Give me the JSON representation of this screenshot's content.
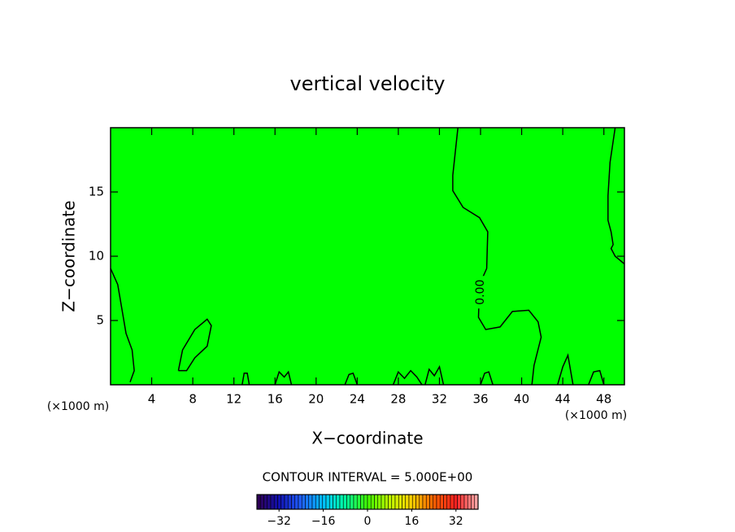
{
  "chart_data": {
    "type": "contour",
    "title": "vertical velocity",
    "x_label": "X−coordinate",
    "y_label": "Z−coordinate",
    "x_unit": "(×1000 m)",
    "y_unit": "(×1000 m)",
    "xlim": [
      0,
      50
    ],
    "ylim": [
      0,
      20
    ],
    "xticks": [
      4,
      8,
      12,
      16,
      20,
      24,
      28,
      32,
      36,
      40,
      44,
      48
    ],
    "yticks": [
      5,
      10,
      15
    ],
    "fill_color": "#00ff00",
    "line_color": "#000000",
    "contours": [
      {
        "label": "0.00",
        "label_x": 36.0,
        "label_z": 7.2,
        "x": [
          33.8,
          33.3,
          33.3,
          34.3,
          35.9,
          36.7,
          36.6,
          35.9,
          35.8,
          36.5,
          37.9,
          39.1,
          40.7,
          41.6,
          41.9,
          41.2,
          41.0
        ],
        "z": [
          20,
          16.3,
          15.1,
          13.8,
          13.0,
          11.9,
          9.05,
          7.8,
          5.25,
          4.3,
          4.5,
          5.7,
          5.8,
          4.9,
          3.7,
          1.5,
          0
        ]
      },
      {
        "x": [
          49.1,
          48.6,
          48.4,
          48.4,
          48.7,
          48.9,
          48.7,
          49.1,
          50
        ],
        "z": [
          20,
          17.3,
          14.7,
          12.8,
          11.9,
          10.9,
          10.6,
          10.0,
          9.4
        ]
      },
      {
        "x": [
          0,
          0.7,
          1.1,
          1.5,
          2.1,
          2.3,
          1.9
        ],
        "z": [
          9.05,
          7.8,
          5.9,
          4.0,
          2.7,
          1.1,
          0.2
        ]
      },
      {
        "x": [
          6.6,
          7.0,
          8.2,
          9.4,
          9.8,
          9.4,
          8.2,
          7.4,
          6.6
        ],
        "z": [
          1.1,
          2.7,
          4.3,
          5.1,
          4.6,
          3.0,
          2.1,
          1.1,
          1.1
        ]
      },
      {
        "x": [
          12.8,
          13.0,
          13.3,
          13.5
        ],
        "z": [
          0,
          0.9,
          0.9,
          0
        ]
      },
      {
        "x": [
          16.0,
          16.4,
          16.9,
          17.3,
          17.6
        ],
        "z": [
          0,
          1.0,
          0.6,
          1.0,
          0
        ]
      },
      {
        "x": [
          22.8,
          23.2,
          23.6,
          24.0
        ],
        "z": [
          0,
          0.8,
          0.9,
          0
        ]
      },
      {
        "x": [
          27.5,
          28.0,
          28.6,
          29.2,
          29.8,
          30.3
        ],
        "z": [
          0,
          1.0,
          0.5,
          1.1,
          0.6,
          0
        ]
      },
      {
        "x": [
          30.6,
          31.0,
          31.5,
          32.0,
          32.4
        ],
        "z": [
          0,
          1.2,
          0.7,
          1.4,
          0
        ]
      },
      {
        "x": [
          36.0,
          36.4,
          36.8,
          37.2
        ],
        "z": [
          0,
          0.9,
          1.0,
          0
        ]
      },
      {
        "x": [
          43.5,
          44.0,
          44.5,
          45.0
        ],
        "z": [
          0,
          1.4,
          2.3,
          0
        ]
      },
      {
        "x": [
          46.5,
          47.0,
          47.6,
          48.0
        ],
        "z": [
          0,
          1.0,
          1.1,
          0
        ]
      }
    ],
    "contour_info": "CONTOUR INTERVAL = 5.000E+00",
    "colorbar": {
      "lim": [
        -40,
        40
      ],
      "ticks": [
        {
          "value": -32,
          "label": "−32"
        },
        {
          "value": -16,
          "label": "−16"
        },
        0,
        16,
        32
      ],
      "colors": [
        "#300050",
        "#1010b0",
        "#2060ff",
        "#00c0ff",
        "#00ffa0",
        "#40ff00",
        "#c0ff00",
        "#ffd000",
        "#ff6000",
        "#ff2020",
        "#ffb0b0"
      ]
    }
  }
}
